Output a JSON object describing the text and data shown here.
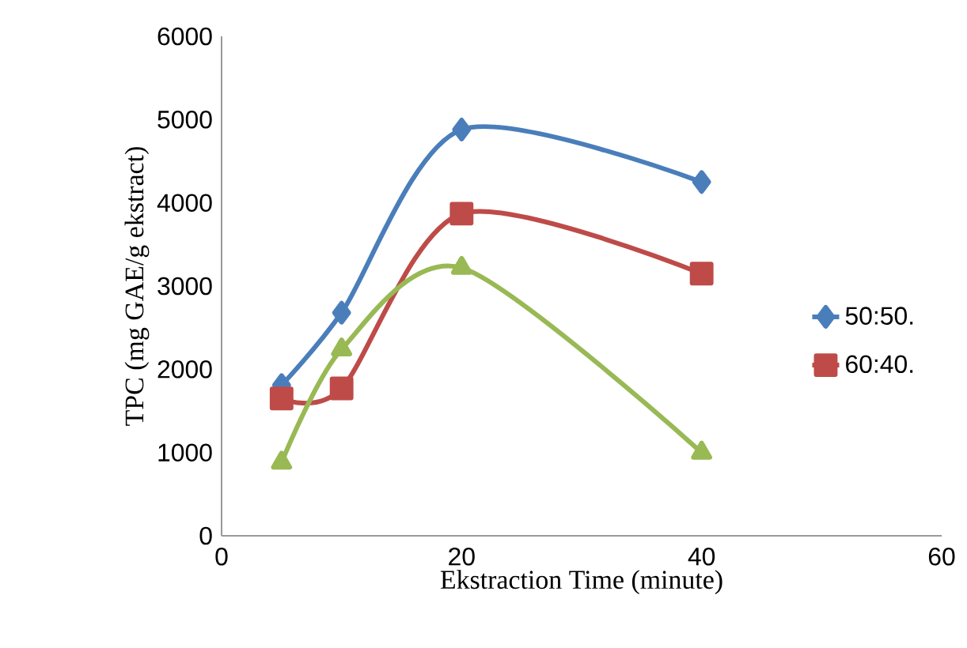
{
  "chart_data": {
    "type": "line",
    "xlabel": "Ekstraction Time (minute)",
    "ylabel": "TPC (mg GAE/g ekstract)",
    "x": [
      5,
      10,
      20,
      40
    ],
    "series": [
      {
        "name": "50:50.",
        "color": "#4a7ebb",
        "values": [
          1810,
          2680,
          4880,
          4250
        ],
        "marker": "diamond"
      },
      {
        "name": "60:40.",
        "color": "#be4b48",
        "values": [
          1650,
          1770,
          3870,
          3150
        ],
        "marker": "square"
      },
      {
        "color": "#98b954",
        "values": [
          880,
          2240,
          3220,
          1000
        ],
        "marker": "triangle"
      }
    ],
    "xlim": [
      0,
      60
    ],
    "xticks": [
      0,
      20,
      40,
      60
    ],
    "ylim": [
      0,
      6000
    ],
    "yticks": [
      0,
      1000,
      2000,
      3000,
      4000,
      5000,
      6000
    ],
    "grid": false,
    "legend": "right",
    "line_style": "solid"
  }
}
